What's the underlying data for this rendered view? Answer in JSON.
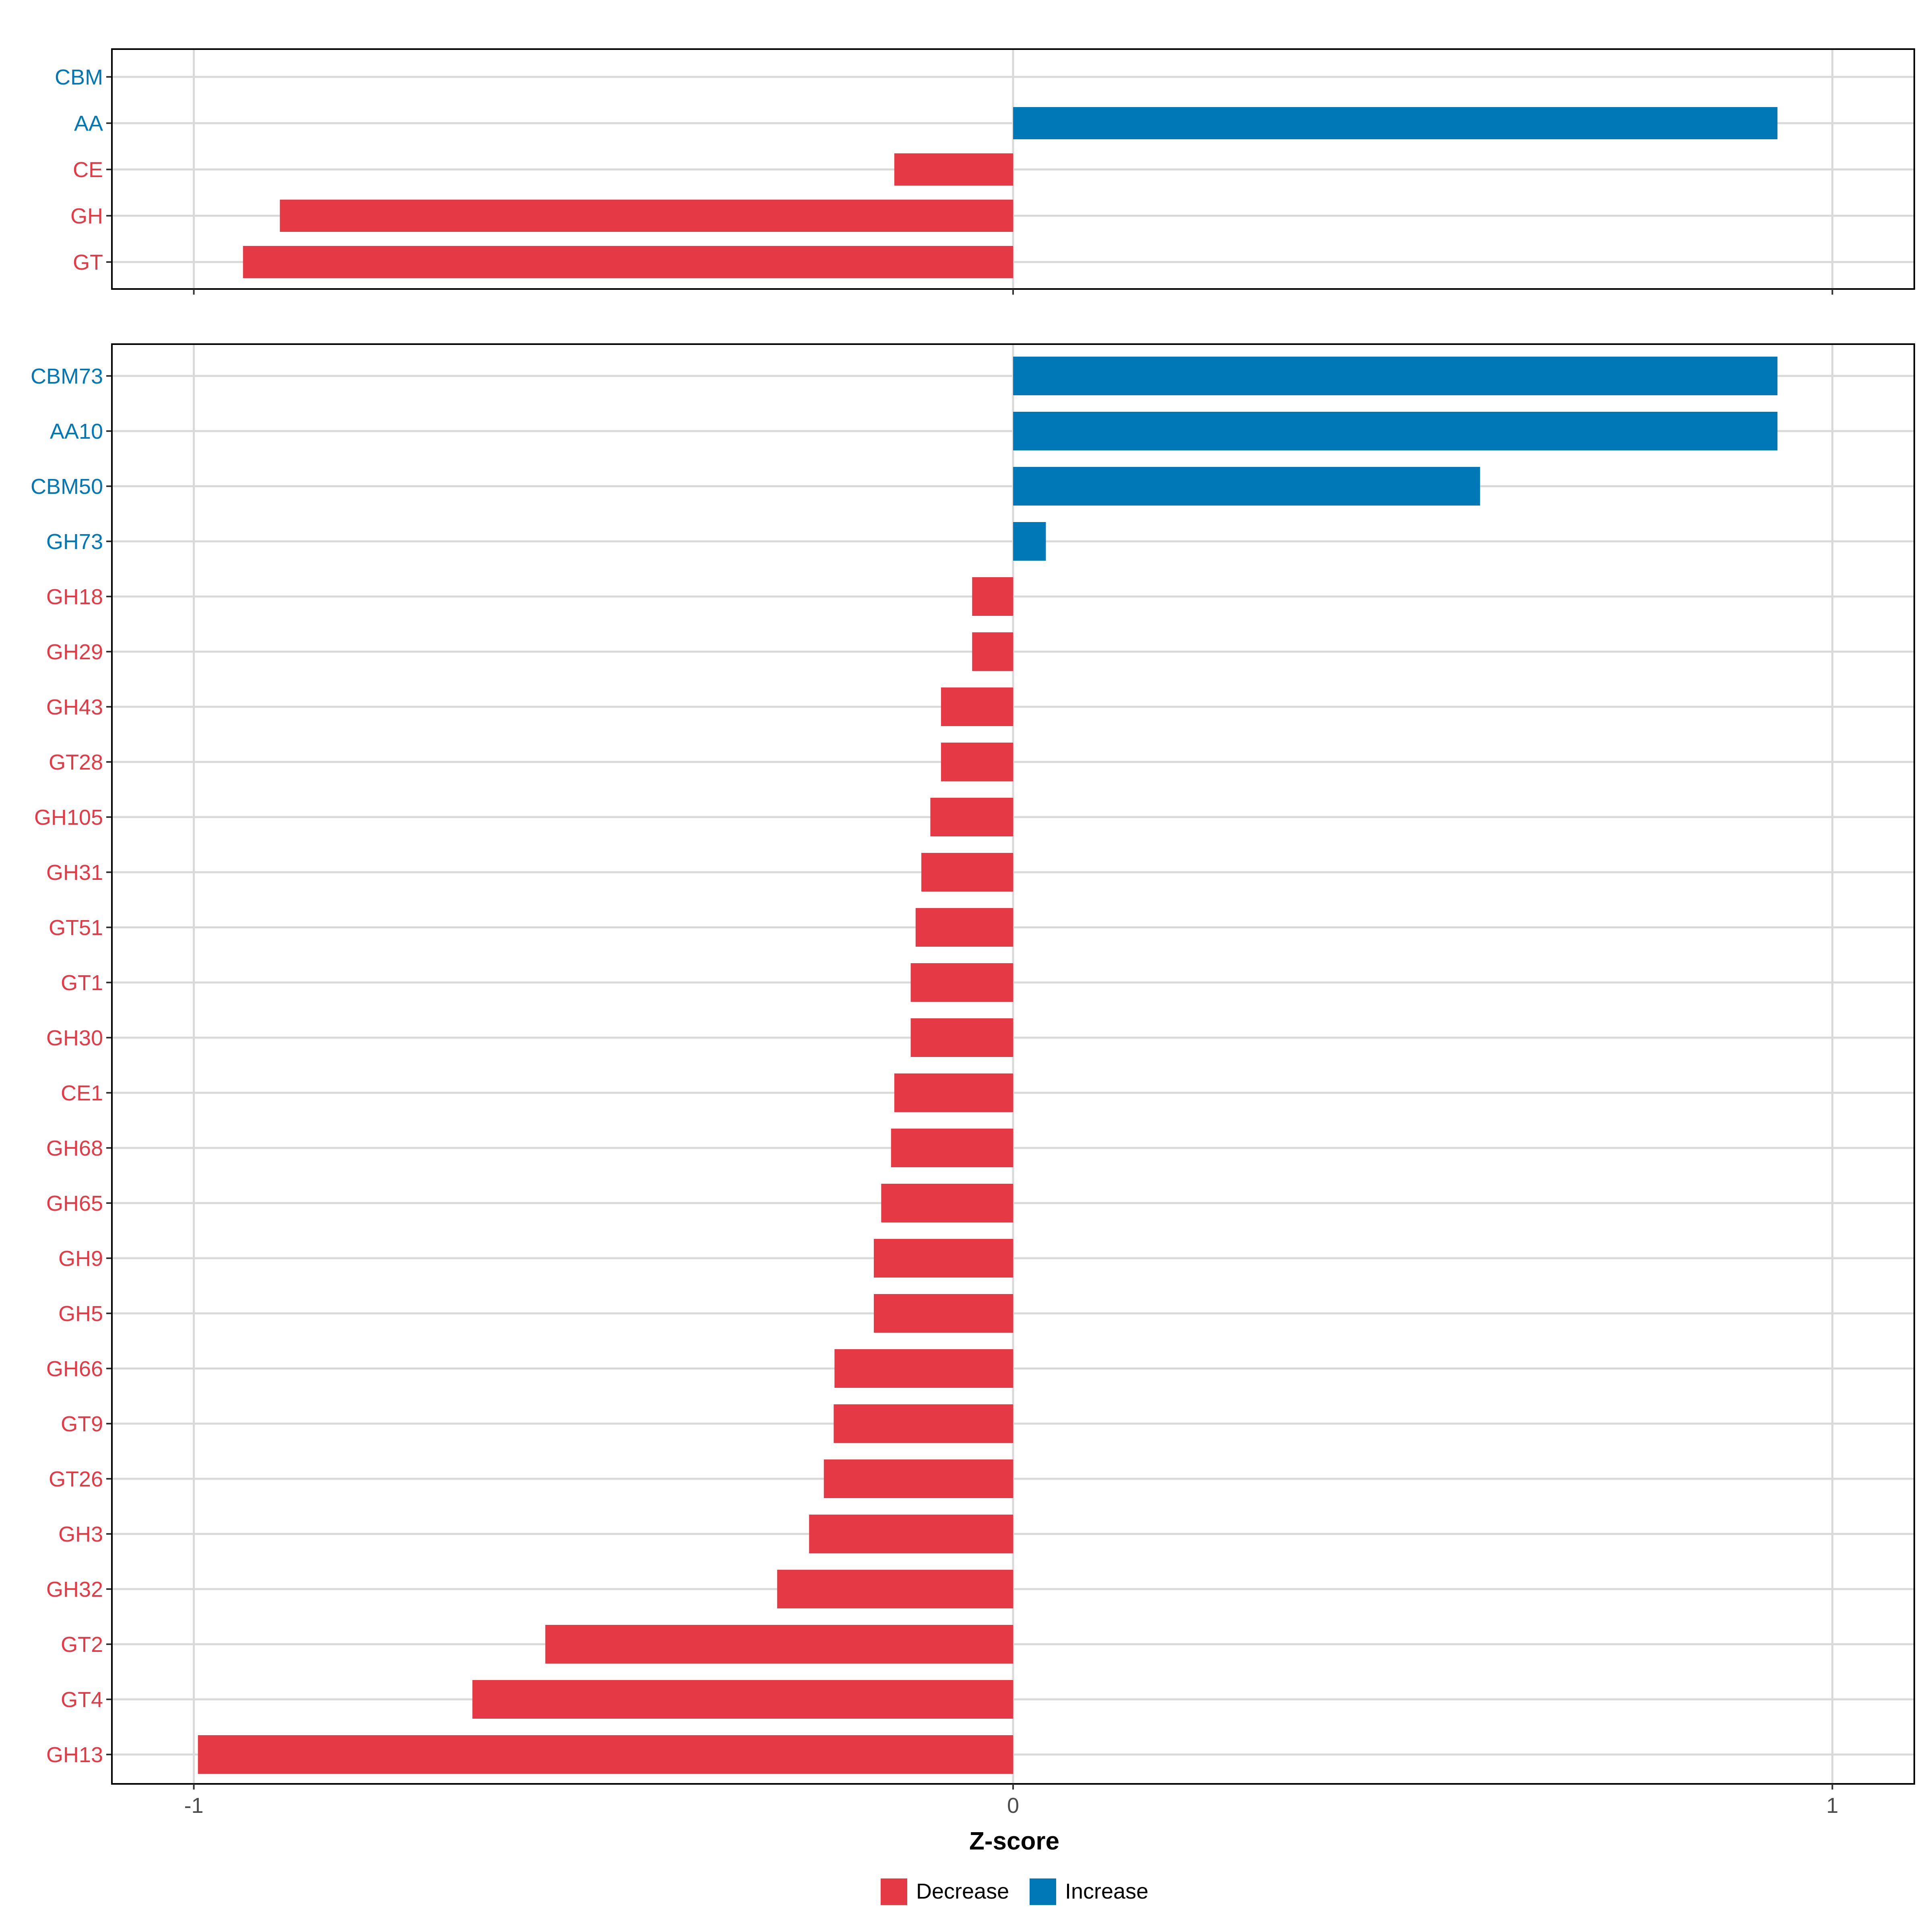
{
  "colors": {
    "decrease": "#E63946",
    "increase": "#0077B6",
    "grid": "#D9D9D9",
    "axis_text": "#4D4D4D",
    "frame": "#000000"
  },
  "chart_data": [
    {
      "type": "bar",
      "orientation": "horizontal",
      "panel": "top",
      "categories": [
        "CBM",
        "AA",
        "CE",
        "GH",
        "GT"
      ],
      "values": [
        0.0,
        0.933,
        -0.145,
        -0.895,
        -0.94
      ],
      "directions": [
        "Increase",
        "Increase",
        "Decrease",
        "Decrease",
        "Decrease"
      ],
      "xlim": [
        -1.1,
        1.1
      ],
      "xticks": [
        -1,
        0,
        1
      ],
      "grid": true
    },
    {
      "type": "bar",
      "orientation": "horizontal",
      "panel": "bottom",
      "categories": [
        "CBM73",
        "AA10",
        "CBM50",
        "GH73",
        "GH18",
        "GH29",
        "GH43",
        "GT28",
        "GH105",
        "GH31",
        "GT51",
        "GT1",
        "GH30",
        "CE1",
        "GH68",
        "GH65",
        "GH9",
        "GH5",
        "GH66",
        "GT9",
        "GT26",
        "GH3",
        "GH32",
        "GT2",
        "GT4",
        "GH13"
      ],
      "values": [
        0.933,
        0.933,
        0.57,
        0.04,
        -0.05,
        -0.05,
        -0.088,
        -0.088,
        -0.101,
        -0.112,
        -0.119,
        -0.125,
        -0.125,
        -0.145,
        -0.149,
        -0.161,
        -0.17,
        -0.17,
        -0.218,
        -0.219,
        -0.231,
        -0.249,
        -0.288,
        -0.571,
        -0.66,
        -0.995
      ],
      "directions": [
        "Increase",
        "Increase",
        "Increase",
        "Increase",
        "Decrease",
        "Decrease",
        "Decrease",
        "Decrease",
        "Decrease",
        "Decrease",
        "Decrease",
        "Decrease",
        "Decrease",
        "Decrease",
        "Decrease",
        "Decrease",
        "Decrease",
        "Decrease",
        "Decrease",
        "Decrease",
        "Decrease",
        "Decrease",
        "Decrease",
        "Decrease",
        "Decrease",
        "Decrease"
      ],
      "xlim": [
        -1.1,
        1.1
      ],
      "xticks": [
        -1,
        0,
        1
      ],
      "xticklabels": [
        "-1",
        "0",
        "1"
      ],
      "xlabel": "Z-score",
      "grid": true
    }
  ],
  "legend": {
    "placement": "bottom-center",
    "items": [
      {
        "label": "Decrease",
        "color_key": "decrease"
      },
      {
        "label": "Increase",
        "color_key": "increase"
      }
    ]
  }
}
